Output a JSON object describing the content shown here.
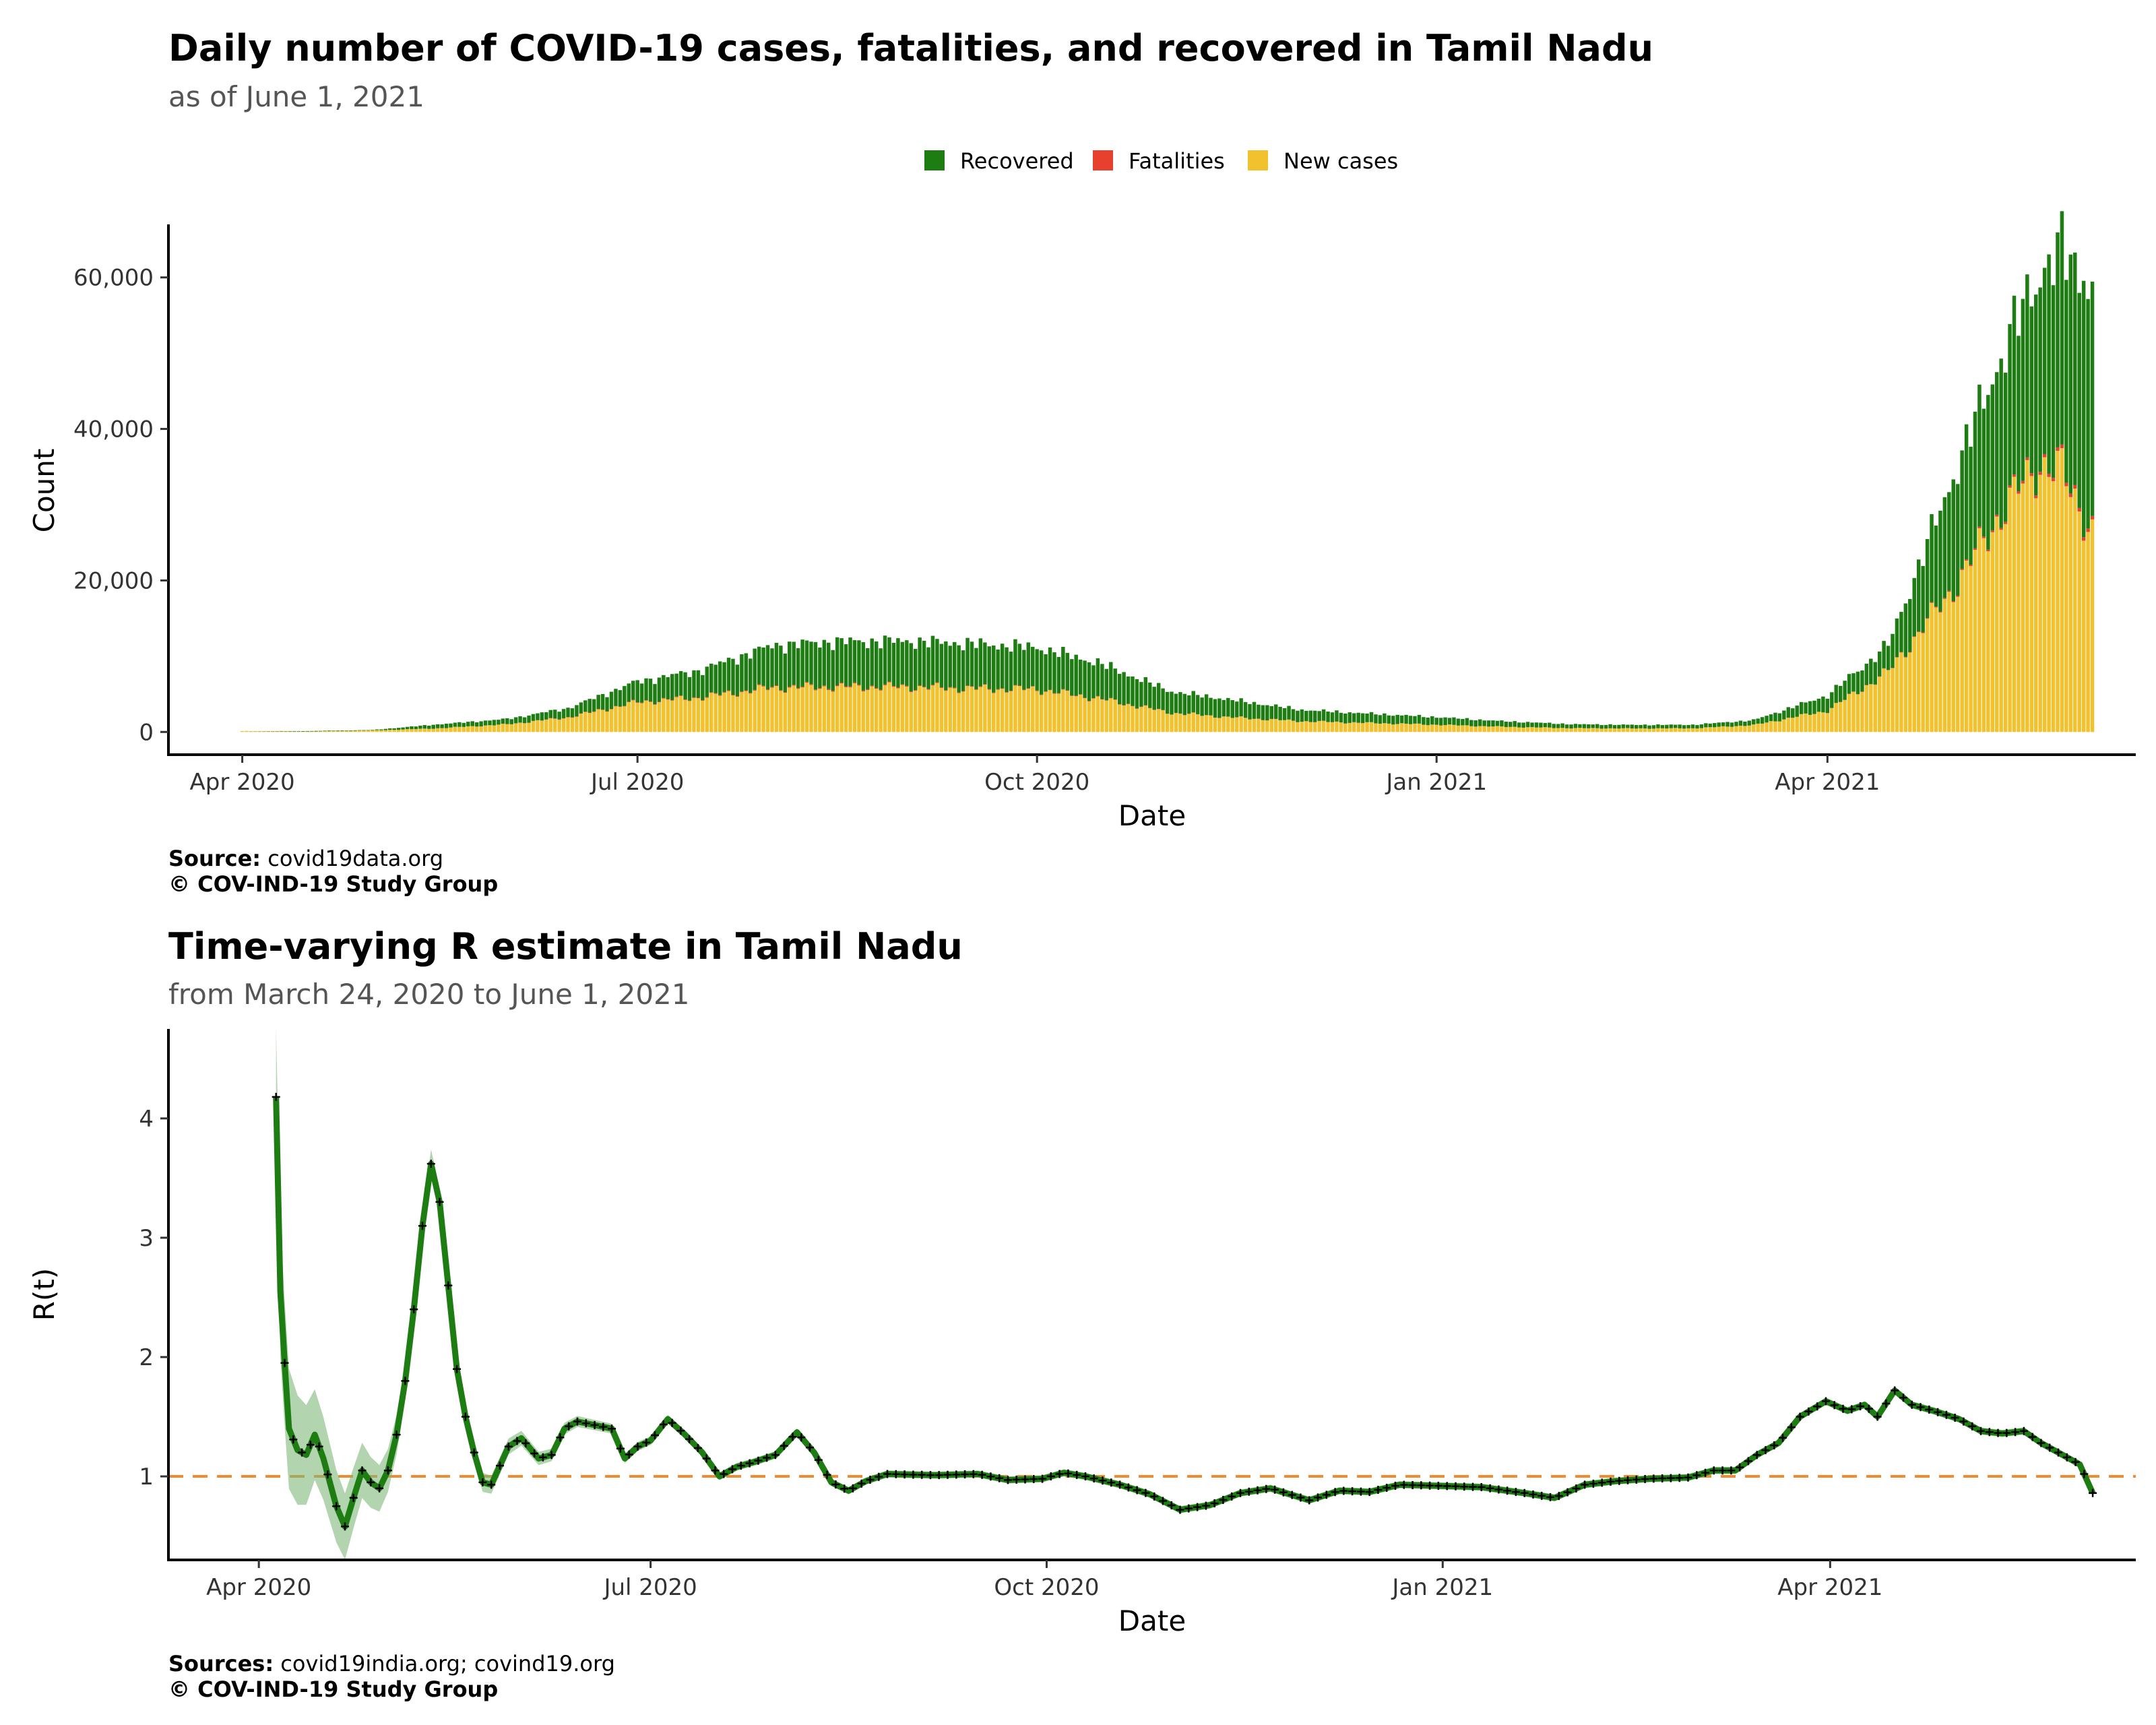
{
  "chart_data": [
    {
      "type": "bar",
      "stacked": true,
      "title": "Daily number of COVID-19 cases, fatalities, and recovered in Tamil Nadu",
      "subtitle": "as of June  1, 2021",
      "xlabel": "Date",
      "ylabel": "Count",
      "x_range": [
        "2020-03-24",
        "2021-06-01"
      ],
      "x_ticks": [
        {
          "date": "2020-04-01",
          "label": "Apr 2020"
        },
        {
          "date": "2020-07-01",
          "label": "Jul 2020"
        },
        {
          "date": "2020-10-01",
          "label": "Oct 2020"
        },
        {
          "date": "2021-01-01",
          "label": "Jan 2021"
        },
        {
          "date": "2021-04-01",
          "label": "Apr 2021"
        }
      ],
      "ylim": [
        -3000,
        67000
      ],
      "y_ticks": [
        {
          "value": 0,
          "label": "0"
        },
        {
          "value": 20000,
          "label": "20,000"
        },
        {
          "value": 40000,
          "label": "40,000"
        },
        {
          "value": 60000,
          "label": "60,000"
        }
      ],
      "grid": false,
      "legend_position": "top",
      "series": [
        {
          "name": "Recovered",
          "color": "#1e7d12"
        },
        {
          "name": "Fatalities",
          "color": "#e8402e"
        },
        {
          "name": "New cases",
          "color": "#f2c12e"
        }
      ],
      "points": [
        {
          "date": "2020-04-01",
          "cases": 110,
          "fatalities": 1,
          "recovered": 2
        },
        {
          "date": "2020-04-15",
          "cases": 40,
          "fatalities": 1,
          "recovered": 70
        },
        {
          "date": "2020-05-01",
          "cases": 200,
          "fatalities": 2,
          "recovered": 60
        },
        {
          "date": "2020-05-15",
          "cases": 450,
          "fatalities": 4,
          "recovered": 500
        },
        {
          "date": "2020-06-01",
          "cases": 1000,
          "fatalities": 12,
          "recovered": 700
        },
        {
          "date": "2020-06-15",
          "cases": 1900,
          "fatalities": 40,
          "recovered": 1200
        },
        {
          "date": "2020-07-01",
          "cases": 3900,
          "fatalities": 60,
          "recovered": 2700
        },
        {
          "date": "2020-07-15",
          "cases": 4500,
          "fatalities": 70,
          "recovered": 3500
        },
        {
          "date": "2020-08-01",
          "cases": 5800,
          "fatalities": 98,
          "recovered": 5500
        },
        {
          "date": "2020-08-15",
          "cases": 5900,
          "fatalities": 118,
          "recovered": 5900
        },
        {
          "date": "2020-09-01",
          "cases": 5900,
          "fatalities": 95,
          "recovered": 6000
        },
        {
          "date": "2020-09-15",
          "cases": 5700,
          "fatalities": 70,
          "recovered": 5900
        },
        {
          "date": "2020-10-01",
          "cases": 5600,
          "fatalities": 60,
          "recovered": 5500
        },
        {
          "date": "2020-10-15",
          "cases": 4400,
          "fatalities": 50,
          "recovered": 4700
        },
        {
          "date": "2020-11-01",
          "cases": 2500,
          "fatalities": 25,
          "recovered": 2800
        },
        {
          "date": "2020-11-15",
          "cases": 1900,
          "fatalities": 15,
          "recovered": 2300
        },
        {
          "date": "2020-12-01",
          "cases": 1400,
          "fatalities": 13,
          "recovered": 1500
        },
        {
          "date": "2020-12-15",
          "cases": 1200,
          "fatalities": 12,
          "recovered": 1250
        },
        {
          "date": "2021-01-01",
          "cases": 950,
          "fatalities": 10,
          "recovered": 1000
        },
        {
          "date": "2021-01-15",
          "cases": 700,
          "fatalities": 7,
          "recovered": 750
        },
        {
          "date": "2021-02-01",
          "cases": 500,
          "fatalities": 5,
          "recovered": 520
        },
        {
          "date": "2021-02-15",
          "cases": 460,
          "fatalities": 4,
          "recovered": 470
        },
        {
          "date": "2021-03-01",
          "cases": 480,
          "fatalities": 4,
          "recovered": 460
        },
        {
          "date": "2021-03-15",
          "cases": 900,
          "fatalities": 5,
          "recovered": 650
        },
        {
          "date": "2021-04-01",
          "cases": 2800,
          "fatalities": 15,
          "recovered": 2000
        },
        {
          "date": "2021-04-15",
          "cases": 7900,
          "fatalities": 40,
          "recovered": 3500
        },
        {
          "date": "2021-05-01",
          "cases": 19600,
          "fatalities": 150,
          "recovered": 15500
        },
        {
          "date": "2021-05-10",
          "cases": 28000,
          "fatalities": 240,
          "recovered": 20000
        },
        {
          "date": "2021-05-20",
          "cases": 35500,
          "fatalities": 400,
          "recovered": 25000
        },
        {
          "date": "2021-05-25",
          "cases": 34000,
          "fatalities": 460,
          "recovered": 29000
        },
        {
          "date": "2021-06-01",
          "cases": 26500,
          "fatalities": 450,
          "recovered": 32000
        }
      ]
    },
    {
      "type": "line",
      "title": "Time-varying R estimate in Tamil Nadu",
      "subtitle": "from March 24, 2020 to June  1, 2021",
      "xlabel": "Date",
      "ylabel": "R(t)",
      "x_range": [
        "2020-03-24",
        "2021-06-01"
      ],
      "x_ticks": [
        {
          "date": "2020-04-01",
          "label": "Apr 2020"
        },
        {
          "date": "2020-07-01",
          "label": "Jul 2020"
        },
        {
          "date": "2020-10-01",
          "label": "Oct 2020"
        },
        {
          "date": "2021-01-01",
          "label": "Jan 2021"
        },
        {
          "date": "2021-04-01",
          "label": "Apr 2021"
        }
      ],
      "ylim": [
        0.3,
        4.75
      ],
      "y_ticks": [
        {
          "value": 1,
          "label": "1"
        },
        {
          "value": 2,
          "label": "2"
        },
        {
          "value": 3,
          "label": "3"
        },
        {
          "value": 4,
          "label": "4"
        }
      ],
      "grid": false,
      "reference_line": {
        "value": 1,
        "color": "#f28a30",
        "style": "dashed"
      },
      "line_color": "#1e7d12",
      "ribbon_color": "#7fb87a",
      "marker_color": "#000000",
      "points": [
        {
          "date": "2020-04-05",
          "r": 4.18
        },
        {
          "date": "2020-04-06",
          "r": 2.55
        },
        {
          "date": "2020-04-07",
          "r": 1.95
        },
        {
          "date": "2020-04-08",
          "r": 1.4
        },
        {
          "date": "2020-04-10",
          "r": 1.22
        },
        {
          "date": "2020-04-12",
          "r": 1.18
        },
        {
          "date": "2020-04-14",
          "r": 1.35
        },
        {
          "date": "2020-04-16",
          "r": 1.15
        },
        {
          "date": "2020-04-19",
          "r": 0.75
        },
        {
          "date": "2020-04-21",
          "r": 0.58
        },
        {
          "date": "2020-04-23",
          "r": 0.82
        },
        {
          "date": "2020-04-25",
          "r": 1.05
        },
        {
          "date": "2020-04-27",
          "r": 0.95
        },
        {
          "date": "2020-04-29",
          "r": 0.9
        },
        {
          "date": "2020-05-01",
          "r": 1.05
        },
        {
          "date": "2020-05-03",
          "r": 1.35
        },
        {
          "date": "2020-05-05",
          "r": 1.8
        },
        {
          "date": "2020-05-07",
          "r": 2.4
        },
        {
          "date": "2020-05-09",
          "r": 3.1
        },
        {
          "date": "2020-05-11",
          "r": 3.62
        },
        {
          "date": "2020-05-13",
          "r": 3.3
        },
        {
          "date": "2020-05-15",
          "r": 2.6
        },
        {
          "date": "2020-05-17",
          "r": 1.9
        },
        {
          "date": "2020-05-19",
          "r": 1.5
        },
        {
          "date": "2020-05-21",
          "r": 1.2
        },
        {
          "date": "2020-05-23",
          "r": 0.95
        },
        {
          "date": "2020-05-25",
          "r": 0.93
        },
        {
          "date": "2020-05-29",
          "r": 1.25
        },
        {
          "date": "2020-06-01",
          "r": 1.32
        },
        {
          "date": "2020-06-05",
          "r": 1.15
        },
        {
          "date": "2020-06-08",
          "r": 1.18
        },
        {
          "date": "2020-06-11",
          "r": 1.4
        },
        {
          "date": "2020-06-14",
          "r": 1.46
        },
        {
          "date": "2020-06-18",
          "r": 1.43
        },
        {
          "date": "2020-06-22",
          "r": 1.4
        },
        {
          "date": "2020-06-25",
          "r": 1.15
        },
        {
          "date": "2020-06-28",
          "r": 1.25
        },
        {
          "date": "2020-07-01",
          "r": 1.3
        },
        {
          "date": "2020-07-05",
          "r": 1.48
        },
        {
          "date": "2020-07-09",
          "r": 1.35
        },
        {
          "date": "2020-07-13",
          "r": 1.2
        },
        {
          "date": "2020-07-17",
          "r": 1.0
        },
        {
          "date": "2020-07-21",
          "r": 1.08
        },
        {
          "date": "2020-07-25",
          "r": 1.12
        },
        {
          "date": "2020-07-30",
          "r": 1.18
        },
        {
          "date": "2020-08-04",
          "r": 1.37
        },
        {
          "date": "2020-08-08",
          "r": 1.2
        },
        {
          "date": "2020-08-12",
          "r": 0.95
        },
        {
          "date": "2020-08-16",
          "r": 0.88
        },
        {
          "date": "2020-08-20",
          "r": 0.96
        },
        {
          "date": "2020-08-25",
          "r": 1.02
        },
        {
          "date": "2020-09-05",
          "r": 1.01
        },
        {
          "date": "2020-09-15",
          "r": 1.02
        },
        {
          "date": "2020-09-22",
          "r": 0.97
        },
        {
          "date": "2020-09-30",
          "r": 0.98
        },
        {
          "date": "2020-10-05",
          "r": 1.03
        },
        {
          "date": "2020-10-10",
          "r": 1.0
        },
        {
          "date": "2020-10-18",
          "r": 0.93
        },
        {
          "date": "2020-10-25",
          "r": 0.85
        },
        {
          "date": "2020-11-01",
          "r": 0.72
        },
        {
          "date": "2020-11-08",
          "r": 0.76
        },
        {
          "date": "2020-11-15",
          "r": 0.86
        },
        {
          "date": "2020-11-22",
          "r": 0.9
        },
        {
          "date": "2020-12-01",
          "r": 0.8
        },
        {
          "date": "2020-12-08",
          "r": 0.88
        },
        {
          "date": "2020-12-15",
          "r": 0.87
        },
        {
          "date": "2020-12-22",
          "r": 0.93
        },
        {
          "date": "2021-01-01",
          "r": 0.92
        },
        {
          "date": "2021-01-10",
          "r": 0.91
        },
        {
          "date": "2021-01-20",
          "r": 0.86
        },
        {
          "date": "2021-01-27",
          "r": 0.82
        },
        {
          "date": "2021-02-03",
          "r": 0.93
        },
        {
          "date": "2021-02-10",
          "r": 0.96
        },
        {
          "date": "2021-02-18",
          "r": 0.98
        },
        {
          "date": "2021-02-27",
          "r": 0.99
        },
        {
          "date": "2021-03-05",
          "r": 1.05
        },
        {
          "date": "2021-03-10",
          "r": 1.05
        },
        {
          "date": "2021-03-15",
          "r": 1.18
        },
        {
          "date": "2021-03-20",
          "r": 1.28
        },
        {
          "date": "2021-03-25",
          "r": 1.5
        },
        {
          "date": "2021-03-31",
          "r": 1.63
        },
        {
          "date": "2021-04-05",
          "r": 1.55
        },
        {
          "date": "2021-04-09",
          "r": 1.6
        },
        {
          "date": "2021-04-12",
          "r": 1.5
        },
        {
          "date": "2021-04-16",
          "r": 1.72
        },
        {
          "date": "2021-04-20",
          "r": 1.6
        },
        {
          "date": "2021-04-25",
          "r": 1.55
        },
        {
          "date": "2021-05-01",
          "r": 1.48
        },
        {
          "date": "2021-05-06",
          "r": 1.38
        },
        {
          "date": "2021-05-11",
          "r": 1.36
        },
        {
          "date": "2021-05-16",
          "r": 1.38
        },
        {
          "date": "2021-05-20",
          "r": 1.28
        },
        {
          "date": "2021-05-25",
          "r": 1.18
        },
        {
          "date": "2021-05-29",
          "r": 1.1
        },
        {
          "date": "2021-06-01",
          "r": 0.86
        }
      ]
    }
  ],
  "captions": {
    "top_source_label": "Source:",
    "top_source_text": " covid19data.org",
    "top_copyright": "© COV-IND-19 Study Group",
    "bottom_source_label": "Sources:",
    "bottom_source_text": " covid19india.org; covind19.org",
    "bottom_copyright": "© COV-IND-19 Study Group"
  }
}
